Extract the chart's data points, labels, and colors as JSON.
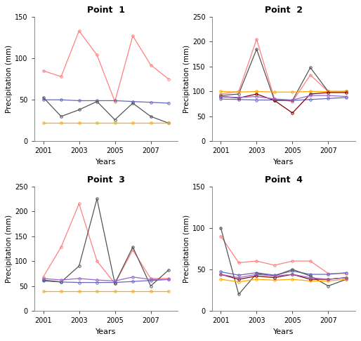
{
  "years": [
    2001,
    2002,
    2003,
    2004,
    2005,
    2006,
    2007,
    2008
  ],
  "point1": {
    "title": "Point  1",
    "ylim": [
      0,
      150
    ],
    "yticks": [
      0,
      50,
      100,
      150
    ],
    "lines": [
      {
        "color": "#FF8080",
        "vals": [
          85,
          78,
          133,
          104,
          48,
          127,
          92,
          75
        ]
      },
      {
        "color": "#6666BB",
        "vals": [
          50,
          50,
          49,
          49,
          49,
          48,
          47,
          46
        ]
      },
      {
        "color": "#555555",
        "vals": [
          53,
          30,
          38,
          48,
          26,
          46,
          30,
          22
        ]
      },
      {
        "color": "#FFAA00",
        "vals": [
          22,
          22,
          22,
          22,
          22,
          22,
          22,
          22
        ]
      }
    ]
  },
  "point2": {
    "title": "Point  2",
    "ylim": [
      0,
      250
    ],
    "yticks": [
      0,
      50,
      100,
      150,
      200,
      250
    ],
    "lines": [
      {
        "color": "#FF8080",
        "vals": [
          95,
          100,
          205,
          85,
          80,
          133,
          100,
          100
        ]
      },
      {
        "color": "#6666BB",
        "vals": [
          85,
          84,
          83,
          83,
          82,
          84,
          86,
          88
        ]
      },
      {
        "color": "#555555",
        "vals": [
          92,
          95,
          185,
          82,
          82,
          148,
          100,
          100
        ]
      },
      {
        "color": "#FFAA00",
        "vals": [
          100,
          99,
          100,
          99,
          99,
          100,
          100,
          100
        ]
      },
      {
        "color": "#880000",
        "vals": [
          90,
          87,
          95,
          82,
          57,
          95,
          98,
          98
        ]
      },
      {
        "color": "#9966CC",
        "vals": [
          90,
          88,
          90,
          85,
          83,
          92,
          92,
          90
        ]
      }
    ]
  },
  "point3": {
    "title": "Point  3",
    "ylim": [
      0,
      250
    ],
    "yticks": [
      0,
      50,
      100,
      150,
      200,
      250
    ],
    "lines": [
      {
        "color": "#FF8080",
        "vals": [
          68,
          128,
          215,
          100,
          55,
          122,
          65,
          65
        ]
      },
      {
        "color": "#6666BB",
        "vals": [
          60,
          58,
          57,
          57,
          57,
          59,
          61,
          63
        ]
      },
      {
        "color": "#555555",
        "vals": [
          62,
          58,
          90,
          225,
          55,
          128,
          50,
          82
        ]
      },
      {
        "color": "#FFAA00",
        "vals": [
          40,
          40,
          40,
          40,
          40,
          40,
          40,
          40
        ]
      },
      {
        "color": "#9966CC",
        "vals": [
          65,
          62,
          65,
          62,
          60,
          68,
          63,
          63
        ]
      }
    ]
  },
  "point4": {
    "title": "Point  4",
    "ylim": [
      0,
      150
    ],
    "yticks": [
      0,
      50,
      100,
      150
    ],
    "lines": [
      {
        "color": "#FF8080",
        "vals": [
          90,
          58,
          60,
          55,
          60,
          60,
          45,
          45
        ]
      },
      {
        "color": "#6666BB",
        "vals": [
          47,
          43,
          46,
          43,
          48,
          44,
          44,
          46
        ]
      },
      {
        "color": "#555555",
        "vals": [
          100,
          20,
          45,
          42,
          50,
          42,
          30,
          38
        ]
      },
      {
        "color": "#FFAA00",
        "vals": [
          38,
          35,
          38,
          37,
          38,
          36,
          36,
          38
        ]
      },
      {
        "color": "#880000",
        "vals": [
          44,
          38,
          42,
          40,
          44,
          38,
          38,
          40
        ]
      },
      {
        "color": "#9966CC",
        "vals": [
          44,
          40,
          44,
          42,
          44,
          40,
          38,
          40
        ]
      }
    ]
  },
  "xlabel": "Years",
  "ylabel": "Precipitation (mm)",
  "xticks": [
    2001,
    2003,
    2005,
    2007
  ]
}
